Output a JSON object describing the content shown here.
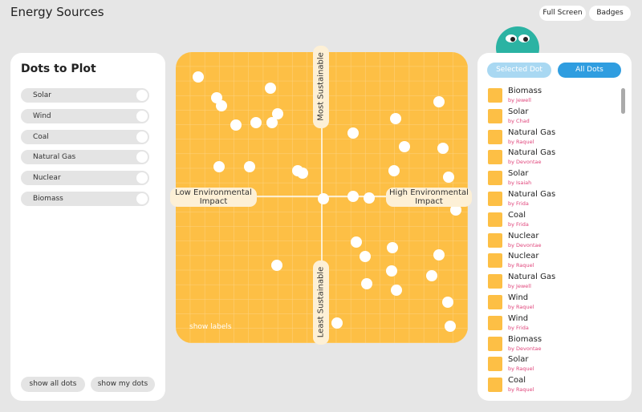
{
  "header": {
    "title": "Energy Sources",
    "buttons": [
      "Full Screen",
      "Badges"
    ]
  },
  "filter_panel": {
    "title": "Dots to Plot",
    "options": [
      "Solar",
      "Wind",
      "Coal",
      "Natural Gas",
      "Nuclear",
      "Biomass"
    ],
    "buttons": [
      "show all dots",
      "show my dots"
    ]
  },
  "plot": {
    "axis_labels": {
      "top": "Most Sustainable",
      "bottom": "Least Sustainable",
      "left": "Low Environmental Impact",
      "right": "High Environmental Impact"
    },
    "toggle": "show labels"
  },
  "list_panel": {
    "tabs": [
      "Selected Dot",
      "All Dots"
    ],
    "items": [
      {
        "name": "Biomass",
        "author": "by Jewell"
      },
      {
        "name": "Solar",
        "author": "by Chad"
      },
      {
        "name": "Natural Gas",
        "author": "by Raquel"
      },
      {
        "name": "Natural Gas",
        "author": "by Devontae"
      },
      {
        "name": "Solar",
        "author": "by Isaiah"
      },
      {
        "name": "Natural Gas",
        "author": "by Frida"
      },
      {
        "name": "Coal",
        "author": "by Frida"
      },
      {
        "name": "Nuclear",
        "author": "by Devontae"
      },
      {
        "name": "Nuclear",
        "author": "by Raquel"
      },
      {
        "name": "Natural Gas",
        "author": "by Jewell"
      },
      {
        "name": "Wind",
        "author": "by Raquel"
      },
      {
        "name": "Wind",
        "author": "by Frida"
      },
      {
        "name": "Biomass",
        "author": "by Devontae"
      },
      {
        "name": "Solar",
        "author": "by Raquel"
      },
      {
        "name": "Coal",
        "author": "by Raquel"
      }
    ]
  }
}
